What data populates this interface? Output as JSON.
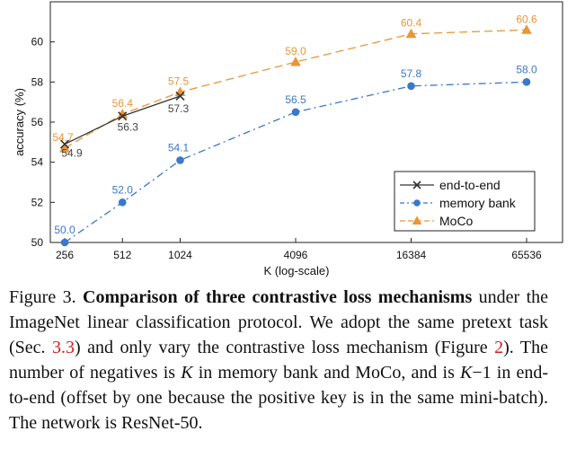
{
  "chart_data": {
    "type": "line",
    "title": "",
    "xlabel": "K (log-scale)",
    "ylabel": "accuracy (%)",
    "x_scale": "log2",
    "x": [
      256,
      512,
      1024,
      4096,
      16384,
      65536
    ],
    "x_tick_labels": [
      "256",
      "512",
      "1024",
      "4096",
      "16384",
      "65536"
    ],
    "ylim": [
      50,
      62
    ],
    "y_ticks": [
      50,
      52,
      54,
      56,
      58,
      60
    ],
    "y_tick_labels": [
      "50",
      "52",
      "54",
      "56",
      "58",
      "60"
    ],
    "grid": false,
    "legend_position": "lower-right",
    "series": [
      {
        "name": "end-to-end",
        "x": [
          256,
          512,
          1024
        ],
        "values": [
          54.9,
          56.3,
          57.3
        ],
        "labels": [
          "54.9",
          "56.3",
          "57.3"
        ],
        "color": "#333333",
        "marker": "x",
        "line_style": "solid"
      },
      {
        "name": "memory bank",
        "x": [
          256,
          512,
          1024,
          4096,
          16384,
          65536
        ],
        "values": [
          50.0,
          52.0,
          54.1,
          56.5,
          57.8,
          58.0
        ],
        "labels": [
          "50.0",
          "52.0",
          "54.1",
          "56.5",
          "57.8",
          "58.0"
        ],
        "color": "#3a78c9",
        "marker": "circle",
        "line_style": "dash-dot"
      },
      {
        "name": "MoCo",
        "x": [
          256,
          512,
          1024,
          4096,
          16384,
          65536
        ],
        "values": [
          54.7,
          56.4,
          57.5,
          59.0,
          60.4,
          60.6
        ],
        "labels": [
          "54.7",
          "56.4",
          "57.5",
          "59.0",
          "60.4",
          "60.6"
        ],
        "color": "#e8963a",
        "marker": "triangle",
        "line_style": "dashed"
      }
    ]
  },
  "caption": {
    "prefix": "Figure 3. ",
    "bold": "Comparison of three contrastive loss mechanisms",
    "t1": " under the ImageNet linear classification protocol. We adopt the same pretext task (Sec. ",
    "ref1": "3.3",
    "t2": ") and only vary the contrastive loss mechanism (Figure ",
    "ref2": "2",
    "t3": "). The number of negatives is ",
    "k1": "K",
    "t4": " in memory bank and MoCo, and is ",
    "k2": "K",
    "t5": "−1 in end-to-end (offset by one because the positive key is in the same mini-batch). The network is ResNet-50."
  }
}
